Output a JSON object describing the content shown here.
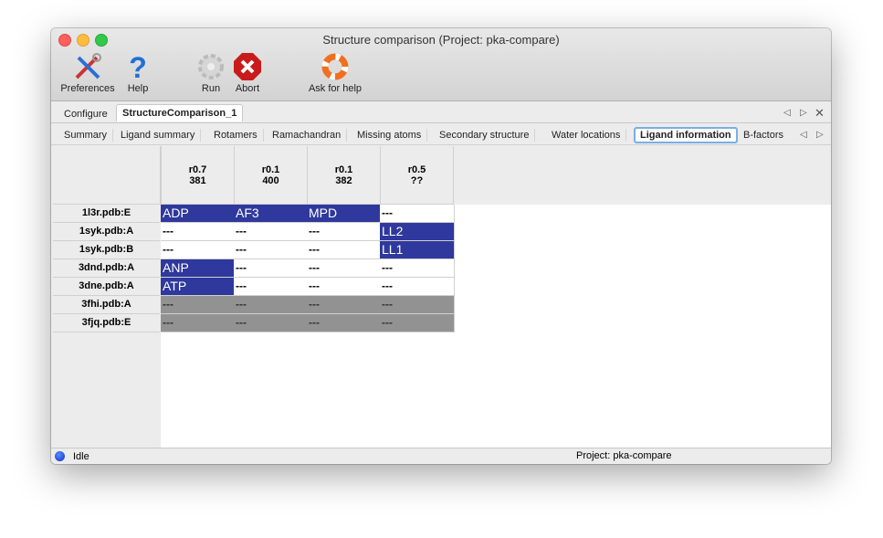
{
  "window": {
    "title": "Structure comparison (Project: pka-compare)"
  },
  "toolbar": [
    {
      "label": "Preferences",
      "icon": "tools-icon"
    },
    {
      "label": "Help",
      "icon": "question-icon"
    },
    {
      "label": "Run",
      "icon": "gear-icon"
    },
    {
      "label": "Abort",
      "icon": "stop-icon"
    },
    {
      "label": "Ask for help",
      "icon": "lifebuoy-icon"
    }
  ],
  "tabs": [
    {
      "label": "Configure"
    },
    {
      "label": "StructureComparison_1",
      "active": true
    }
  ],
  "subtabs": [
    {
      "label": "Summary"
    },
    {
      "label": "Ligand summary"
    },
    {
      "label": "Rotamers"
    },
    {
      "label": "Ramachandran"
    },
    {
      "label": "Missing atoms"
    },
    {
      "label": "Secondary structure"
    },
    {
      "label": "Water locations"
    },
    {
      "label": "Ligand information",
      "active": true
    },
    {
      "label": "B-factors"
    }
  ],
  "table": {
    "columns": [
      {
        "line1": "r0.7",
        "line2": "381"
      },
      {
        "line1": "r0.1",
        "line2": "400"
      },
      {
        "line1": "r0.1",
        "line2": "382"
      },
      {
        "line1": "r0.5",
        "line2": "??"
      }
    ],
    "rows": [
      {
        "label": "1l3r.pdb:E",
        "cells": [
          {
            "text": "ADP",
            "state": "lig"
          },
          {
            "text": "AF3",
            "state": "lig"
          },
          {
            "text": "MPD",
            "state": "lig"
          },
          {
            "text": "---",
            "state": "empty"
          }
        ]
      },
      {
        "label": "1syk.pdb:A",
        "cells": [
          {
            "text": "---",
            "state": "empty"
          },
          {
            "text": "---",
            "state": "empty"
          },
          {
            "text": "---",
            "state": "empty"
          },
          {
            "text": "LL2",
            "state": "lig"
          }
        ]
      },
      {
        "label": "1syk.pdb:B",
        "cells": [
          {
            "text": "---",
            "state": "empty"
          },
          {
            "text": "---",
            "state": "empty"
          },
          {
            "text": "---",
            "state": "empty"
          },
          {
            "text": "LL1",
            "state": "lig"
          }
        ]
      },
      {
        "label": "3dnd.pdb:A",
        "cells": [
          {
            "text": "ANP",
            "state": "lig"
          },
          {
            "text": "---",
            "state": "empty"
          },
          {
            "text": "---",
            "state": "empty"
          },
          {
            "text": "---",
            "state": "empty"
          }
        ]
      },
      {
        "label": "3dne.pdb:A",
        "cells": [
          {
            "text": "ATP",
            "state": "lig"
          },
          {
            "text": "---",
            "state": "empty"
          },
          {
            "text": "---",
            "state": "empty"
          },
          {
            "text": "---",
            "state": "empty"
          }
        ]
      },
      {
        "label": "3fhi.pdb:A",
        "cells": [
          {
            "text": "---",
            "state": "grey"
          },
          {
            "text": "---",
            "state": "grey"
          },
          {
            "text": "---",
            "state": "grey"
          },
          {
            "text": "---",
            "state": "grey"
          }
        ]
      },
      {
        "label": "3fjq.pdb:E",
        "cells": [
          {
            "text": "---",
            "state": "grey"
          },
          {
            "text": "---",
            "state": "grey"
          },
          {
            "text": "---",
            "state": "grey"
          },
          {
            "text": "---",
            "state": "grey"
          }
        ]
      }
    ]
  },
  "status": {
    "state": "Idle",
    "project": "Project: pka-compare"
  },
  "colors": {
    "ligand_cell": "#2f389c",
    "missing_cell": "#929292",
    "active_tab_border": "#7aaee6"
  }
}
